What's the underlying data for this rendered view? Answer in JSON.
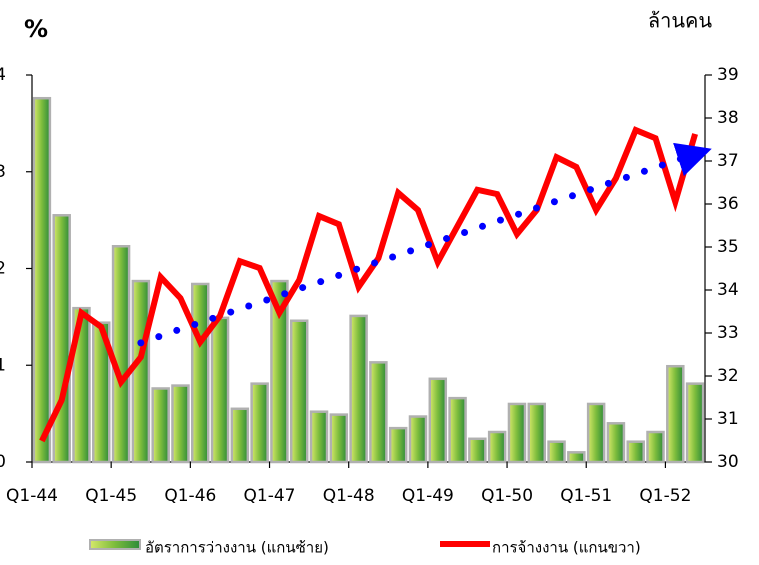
{
  "chart_data": {
    "type": "bar-line",
    "y_title": "%",
    "y2_title": "ล้านคน",
    "categories": [
      "Q1-44",
      null,
      null,
      null,
      "Q1-45",
      null,
      null,
      null,
      "Q1-46",
      null,
      null,
      null,
      "Q1-47",
      null,
      null,
      null,
      "Q1-48",
      null,
      null,
      null,
      "Q1-49",
      null,
      null,
      null,
      "Q1-50",
      null,
      null,
      null,
      "Q1-51",
      null,
      null,
      null,
      "Q1-52",
      null
    ],
    "ylim": [
      0,
      4
    ],
    "yticks": [
      0,
      1,
      2,
      3,
      4
    ],
    "y2lim": [
      30,
      39
    ],
    "y2ticks": [
      30,
      31,
      32,
      33,
      34,
      35,
      36,
      37,
      38,
      39
    ],
    "series": [
      {
        "name": "อัตราการว่างงาน (แกนซ้าย)",
        "type": "bar",
        "axis": "y",
        "color": "#6cb33f",
        "values": [
          3.76,
          2.55,
          1.59,
          1.44,
          2.23,
          1.87,
          0.76,
          0.79,
          1.84,
          1.49,
          0.55,
          0.81,
          1.87,
          1.46,
          0.52,
          0.49,
          1.51,
          1.03,
          0.35,
          0.47,
          0.86,
          0.66,
          0.24,
          0.31,
          0.6,
          0.6,
          0.21,
          0.1,
          0.6,
          0.4,
          0.21,
          0.31,
          0.99,
          0.81
        ]
      },
      {
        "name": "การจ้างงาน (แกนขวา)",
        "type": "line",
        "axis": "y2",
        "color": "#ff0000",
        "values": [
          30.49,
          31.44,
          33.47,
          33.14,
          31.86,
          32.44,
          34.3,
          33.81,
          32.79,
          33.4,
          34.67,
          34.51,
          33.47,
          34.23,
          35.72,
          35.53,
          34.07,
          34.74,
          36.26,
          35.86,
          34.65,
          35.49,
          36.33,
          36.23,
          35.3,
          35.86,
          37.09,
          36.86,
          35.86,
          36.6,
          37.72,
          37.53,
          36.05,
          37.63
        ]
      },
      {
        "type": "trend",
        "axis": "y2",
        "color": "#0000ff",
        "values": [
          null,
          null,
          null,
          null,
          null,
          32.77,
          32.93,
          33.09,
          33.24,
          33.4,
          33.56,
          33.71,
          33.87,
          34.03,
          34.18,
          34.34,
          34.5,
          34.66,
          34.81,
          34.97,
          35.13,
          35.28,
          35.44,
          35.6,
          35.75,
          35.91,
          36.07,
          36.22,
          36.38,
          36.54,
          36.69,
          36.85,
          37.01,
          37.16
        ]
      }
    ]
  }
}
